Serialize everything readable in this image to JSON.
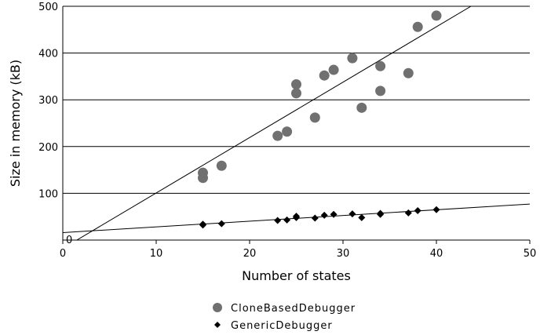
{
  "chart_data": {
    "type": "scatter",
    "xlabel": "Number of states",
    "ylabel": "Size in memory (kB)",
    "xlim": [
      0,
      50
    ],
    "ylim": [
      0,
      500
    ],
    "xticks": [
      0,
      10,
      20,
      30,
      40,
      50
    ],
    "yticks": [
      0,
      100,
      200,
      300,
      400,
      500
    ],
    "grid": "horizontal",
    "legend": "bottom-center",
    "series": [
      {
        "name": "CloneBasedDebugger",
        "marker": "circle",
        "color": "#707070",
        "points": [
          [
            15,
            133
          ],
          [
            15,
            144
          ],
          [
            17,
            159
          ],
          [
            23,
            223
          ],
          [
            24,
            232
          ],
          [
            25,
            314
          ],
          [
            25,
            333
          ],
          [
            27,
            262
          ],
          [
            28,
            352
          ],
          [
            29,
            364
          ],
          [
            31,
            389
          ],
          [
            32,
            283
          ],
          [
            34,
            319
          ],
          [
            34,
            372
          ],
          [
            37,
            357
          ],
          [
            38,
            456
          ],
          [
            40,
            480
          ]
        ],
        "trendline": [
          [
            1.5,
            0
          ],
          [
            43.7,
            500
          ]
        ]
      },
      {
        "name": "GenericDebugger",
        "marker": "diamond",
        "color": "#000000",
        "points": [
          [
            15,
            32
          ],
          [
            15,
            34
          ],
          [
            17,
            35
          ],
          [
            23,
            42
          ],
          [
            24,
            43
          ],
          [
            25,
            48
          ],
          [
            25,
            51
          ],
          [
            27,
            47
          ],
          [
            28,
            53
          ],
          [
            29,
            55
          ],
          [
            31,
            56
          ],
          [
            32,
            48
          ],
          [
            34,
            55
          ],
          [
            34,
            57
          ],
          [
            37,
            58
          ],
          [
            38,
            63
          ],
          [
            40,
            65
          ]
        ],
        "trendline": [
          [
            0,
            16
          ],
          [
            50,
            77
          ]
        ]
      }
    ]
  }
}
